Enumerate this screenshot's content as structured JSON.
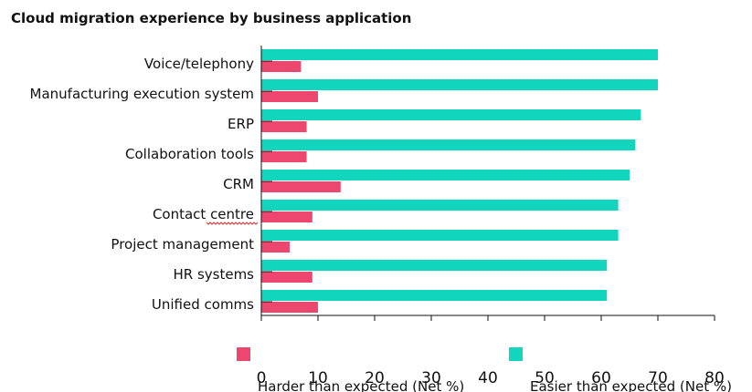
{
  "chart_data": {
    "type": "bar",
    "orientation": "horizontal",
    "title": "Cloud migration experience by business application",
    "categories": [
      "Voice/telephony",
      "Manufacturing execution system",
      "ERP",
      "Collaboration tools",
      "CRM",
      "Contact centre",
      "Project management",
      "HR systems",
      "Unified comms"
    ],
    "series": [
      {
        "name": "Easier than expected (Net %)",
        "color": "#12d5bd",
        "values": [
          70,
          70,
          67,
          66,
          65,
          63,
          63,
          61,
          61
        ]
      },
      {
        "name": "Harder than expected (Net %)",
        "color": "#ee476f",
        "values": [
          7,
          10,
          8,
          8,
          14,
          9,
          5,
          9,
          10
        ]
      }
    ],
    "xlim": [
      0,
      80
    ],
    "xticks": [
      0,
      10,
      20,
      30,
      40,
      50,
      60,
      70,
      80
    ],
    "xlabel": "",
    "ylabel": "",
    "grid": false,
    "legend_position": "bottom"
  }
}
